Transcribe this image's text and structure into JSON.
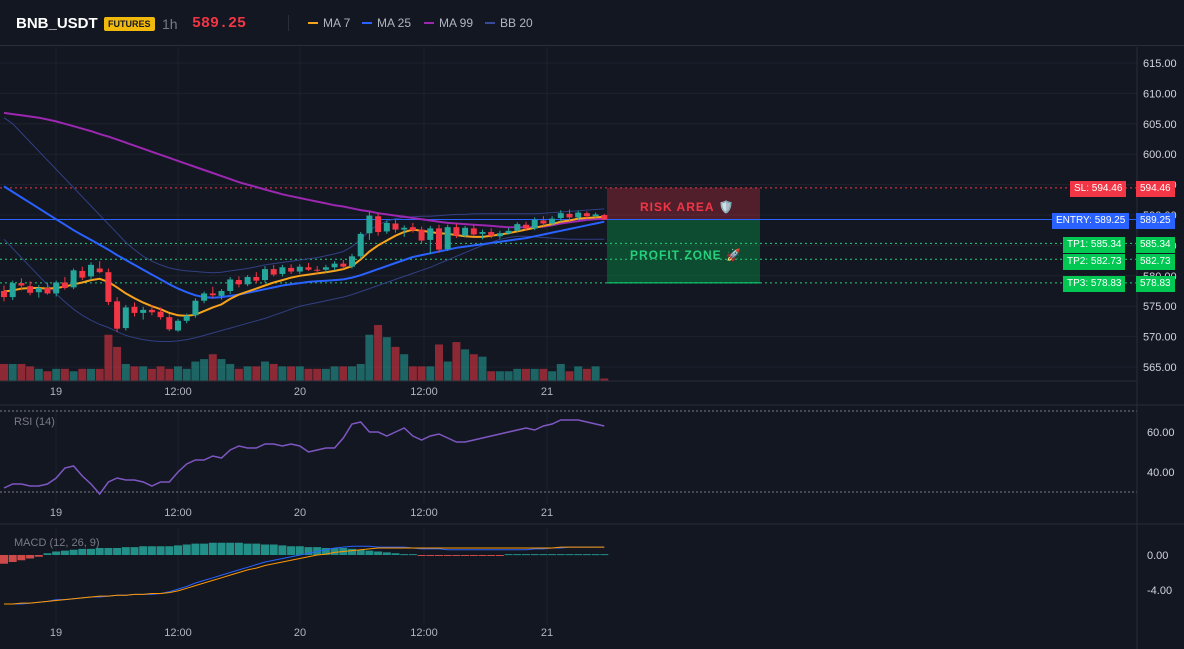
{
  "header": {
    "symbol": "BNB_USDT",
    "badge": "FUTURES",
    "timeframe": "1h",
    "last_price": "589.25",
    "indicators": [
      {
        "label": "MA 7",
        "color": "#f7a21b"
      },
      {
        "label": "MA 25",
        "color": "#2962ff"
      },
      {
        "label": "MA 99",
        "color": "#9c27b0"
      },
      {
        "label": "BB 20",
        "color": "#3a4a9b"
      }
    ]
  },
  "levels": {
    "sl": {
      "tag": "SL: 594.46",
      "axis": "594.46",
      "value": 594.46,
      "color": "#f23645"
    },
    "entry": {
      "tag": "ENTRY: 589.25",
      "axis": "589.25",
      "value": 589.25,
      "color": "#2962ff"
    },
    "tp1": {
      "tag": "TP1: 585.34",
      "axis": "585.34",
      "value": 585.34,
      "color": "#00c853"
    },
    "tp2": {
      "tag": "TP2: 582.73",
      "axis": "582.73",
      "value": 582.73,
      "color": "#00c853"
    },
    "tp3": {
      "tag": "TP3: 578.83",
      "axis": "578.83",
      "value": 578.83,
      "color": "#00c853"
    }
  },
  "zones": {
    "risk_label": "RISK AREA 🛡️",
    "profit_label": "PROFIT ZONE 🚀"
  },
  "time_axis": [
    "19",
    "12:00",
    "20",
    "12:00",
    "21"
  ],
  "rsi_label": "RSI (14)",
  "macd_label": "MACD (12, 26, 9)",
  "chart_data": {
    "type": "candlestick",
    "price_axis": {
      "ticks": [
        615,
        610,
        605,
        600,
        595,
        590,
        585,
        580,
        575,
        570,
        565
      ],
      "tick_labels": [
        "615.00",
        "610.00",
        "605.00",
        "600.00",
        "595.00",
        "590.00",
        "585.00",
        "580.00",
        "575.00",
        "570.00",
        "565.00"
      ],
      "range": [
        563.5,
        617.5
      ]
    },
    "candles": [
      [
        577.5,
        578.4,
        575.8,
        576.5
      ],
      [
        576.5,
        579.2,
        576.0,
        578.8
      ],
      [
        578.8,
        579.6,
        577.6,
        578.4
      ],
      [
        578.3,
        579.1,
        576.8,
        577.2
      ],
      [
        577.3,
        578.5,
        576.4,
        578.0
      ],
      [
        578.0,
        578.9,
        576.9,
        577.1
      ],
      [
        577.1,
        579.2,
        576.6,
        578.9
      ],
      [
        578.9,
        579.8,
        577.7,
        578.0
      ],
      [
        578.1,
        581.2,
        577.8,
        580.9
      ],
      [
        580.8,
        581.5,
        579.3,
        579.7
      ],
      [
        579.9,
        582.2,
        579.3,
        581.8
      ],
      [
        581.2,
        582.4,
        580.4,
        580.6
      ],
      [
        580.6,
        581.2,
        575.2,
        575.7
      ],
      [
        575.8,
        576.5,
        570.8,
        571.3
      ],
      [
        571.4,
        575.2,
        571.0,
        574.8
      ],
      [
        574.9,
        575.6,
        573.3,
        573.9
      ],
      [
        573.9,
        574.9,
        572.8,
        574.4
      ],
      [
        574.4,
        575.2,
        573.5,
        574.0
      ],
      [
        574.1,
        574.8,
        572.8,
        573.2
      ],
      [
        573.2,
        573.7,
        570.9,
        571.2
      ],
      [
        571.0,
        572.9,
        570.8,
        572.6
      ],
      [
        572.6,
        573.8,
        572.2,
        573.4
      ],
      [
        573.5,
        576.3,
        573.1,
        575.9
      ],
      [
        575.9,
        577.4,
        575.5,
        577.1
      ],
      [
        577.1,
        578.2,
        576.4,
        576.8
      ],
      [
        576.7,
        577.8,
        576.1,
        577.5
      ],
      [
        577.5,
        579.8,
        577.0,
        579.4
      ],
      [
        579.3,
        579.9,
        578.1,
        578.6
      ],
      [
        578.6,
        580.1,
        578.3,
        579.8
      ],
      [
        579.8,
        580.6,
        578.8,
        579.2
      ],
      [
        579.3,
        581.6,
        578.9,
        581.1
      ],
      [
        581.1,
        581.8,
        579.9,
        580.2
      ],
      [
        580.3,
        581.8,
        579.9,
        581.4
      ],
      [
        581.3,
        581.9,
        580.3,
        580.7
      ],
      [
        580.7,
        581.9,
        580.3,
        581.5
      ],
      [
        581.4,
        582.1,
        580.8,
        581.0
      ],
      [
        581.0,
        581.6,
        580.4,
        580.9
      ],
      [
        581.0,
        581.8,
        580.5,
        581.4
      ],
      [
        581.4,
        582.4,
        580.9,
        582.0
      ],
      [
        582.0,
        582.6,
        581.1,
        581.5
      ],
      [
        581.5,
        583.6,
        581.2,
        583.2
      ],
      [
        583.2,
        587.2,
        582.8,
        586.9
      ],
      [
        587.0,
        590.5,
        585.9,
        589.9
      ],
      [
        589.8,
        590.3,
        586.6,
        587.2
      ],
      [
        587.3,
        589.1,
        586.9,
        588.7
      ],
      [
        588.6,
        589.2,
        587.1,
        587.6
      ],
      [
        587.6,
        588.3,
        586.4,
        587.9
      ],
      [
        588.0,
        588.7,
        587.1,
        587.5
      ],
      [
        587.6,
        588.1,
        585.4,
        585.8
      ],
      [
        585.9,
        588.2,
        583.6,
        587.8
      ],
      [
        587.8,
        588.4,
        583.8,
        584.3
      ],
      [
        584.4,
        588.4,
        584.1,
        588.0
      ],
      [
        588.0,
        588.6,
        586.2,
        586.6
      ],
      [
        586.6,
        588.2,
        586.3,
        587.9
      ],
      [
        587.8,
        588.3,
        586.5,
        586.8
      ],
      [
        586.9,
        587.6,
        586.0,
        587.2
      ],
      [
        587.2,
        587.8,
        586.2,
        586.6
      ],
      [
        586.5,
        587.4,
        586.1,
        587.0
      ],
      [
        587.0,
        587.9,
        586.8,
        587.4
      ],
      [
        587.4,
        588.8,
        587.2,
        588.5
      ],
      [
        588.4,
        588.9,
        587.4,
        587.8
      ],
      [
        587.8,
        589.6,
        587.5,
        589.2
      ],
      [
        589.1,
        589.8,
        588.2,
        588.6
      ],
      [
        588.6,
        589.8,
        588.3,
        589.4
      ],
      [
        589.5,
        590.8,
        588.9,
        590.3
      ],
      [
        590.2,
        590.9,
        589.1,
        589.6
      ],
      [
        589.6,
        590.7,
        589.3,
        590.4
      ],
      [
        590.3,
        590.6,
        589.4,
        589.8
      ],
      [
        589.8,
        590.4,
        589.3,
        590.1
      ],
      [
        590.0,
        590.2,
        589.2,
        589.25
      ]
    ],
    "volume": [
      7,
      7,
      7,
      6,
      5,
      4,
      5,
      5,
      4,
      5,
      5,
      5,
      19,
      14,
      7,
      6,
      6,
      5,
      6,
      5,
      6,
      5,
      8,
      9,
      11,
      9,
      7,
      5,
      6,
      6,
      8,
      7,
      6,
      6,
      6,
      5,
      5,
      5,
      6,
      6,
      6,
      7,
      19,
      23,
      18,
      14,
      11,
      6,
      6,
      6,
      15,
      8,
      16,
      13,
      11,
      10,
      4,
      4,
      4,
      5,
      5,
      5,
      5,
      4,
      7,
      4,
      6,
      5,
      6,
      1
    ],
    "series": [
      {
        "name": "MA 7",
        "values": [
          577.4,
          577.6,
          577.9,
          578.0,
          578.0,
          577.9,
          578.0,
          578.2,
          578.6,
          578.9,
          579.3,
          579.5,
          579.0,
          578.1,
          577.1,
          576.3,
          575.6,
          575.0,
          574.5,
          573.9,
          573.5,
          573.4,
          573.6,
          574.2,
          574.8,
          575.3,
          576.2,
          576.9,
          577.4,
          577.9,
          578.4,
          578.9,
          579.3,
          579.7,
          580.0,
          580.2,
          580.4,
          580.6,
          580.8,
          581.1,
          581.6,
          582.7,
          584.0,
          585.0,
          585.8,
          586.6,
          587.2,
          587.6,
          587.4,
          587.2,
          587.0,
          586.9,
          586.7,
          586.5,
          586.4,
          586.4,
          586.6,
          586.8,
          587.0,
          587.3,
          587.6,
          587.9,
          588.2,
          588.5,
          588.9,
          589.1,
          589.4,
          589.5,
          589.6,
          589.7
        ]
      },
      {
        "name": "MA 25",
        "values": [
          594.7,
          593.8,
          592.9,
          592.0,
          591.1,
          590.2,
          589.3,
          588.4,
          587.5,
          586.7,
          585.9,
          585.1,
          584.3,
          583.4,
          582.6,
          581.8,
          581.0,
          580.2,
          579.4,
          578.6,
          577.9,
          577.3,
          576.8,
          576.5,
          576.4,
          576.5,
          576.7,
          576.9,
          577.2,
          577.5,
          577.8,
          578.1,
          578.4,
          578.6,
          578.8,
          579.0,
          579.1,
          579.2,
          579.3,
          579.4,
          579.7,
          580.1,
          580.6,
          581.1,
          581.6,
          582.1,
          582.6,
          583.1,
          583.4,
          583.7,
          584.0,
          584.3,
          584.6,
          584.8,
          585.0,
          585.2,
          585.4,
          585.6,
          585.8,
          586.0,
          586.2,
          586.5,
          586.8,
          587.1,
          587.4,
          587.7,
          588.0,
          588.3,
          588.6,
          588.9
        ]
      },
      {
        "name": "MA 99",
        "values": [
          606.8,
          606.6,
          606.4,
          606.2,
          606.0,
          605.7,
          605.4,
          605.0,
          604.6,
          604.2,
          603.8,
          603.3,
          602.9,
          602.4,
          601.9,
          601.4,
          600.9,
          600.4,
          599.9,
          599.4,
          598.9,
          598.4,
          597.9,
          597.4,
          596.9,
          596.4,
          595.9,
          595.4,
          595.0,
          594.6,
          594.2,
          593.8,
          593.4,
          593.1,
          592.8,
          592.5,
          592.2,
          591.9,
          591.6,
          591.4,
          591.1,
          590.8,
          590.6,
          590.3,
          590.1,
          589.9,
          589.7,
          589.5,
          589.3,
          589.1,
          588.9,
          588.7,
          588.6,
          588.5,
          588.4,
          588.3,
          588.2,
          588.1,
          588.0,
          588.0,
          588.0,
          588.0,
          588.1,
          588.3,
          588.6,
          588.8,
          589.0,
          589.2,
          589.3,
          589.4
        ]
      },
      {
        "name": "BB upper",
        "values": [
          606.0,
          605.0,
          603.5,
          602.0,
          600.5,
          599.0,
          597.5,
          596.0,
          594.5,
          593.0,
          591.5,
          590.0,
          588.5,
          587.0,
          585.5,
          584.3,
          583.2,
          582.4,
          581.8,
          581.3,
          581.0,
          580.8,
          580.7,
          580.6,
          580.5,
          580.6,
          580.8,
          581.0,
          581.2,
          581.5,
          581.8,
          582.0,
          582.2,
          582.4,
          582.6,
          582.8,
          583.0,
          583.3,
          583.6,
          584.0,
          584.8,
          586.0,
          587.4,
          588.4,
          589.0,
          589.4,
          589.6,
          589.7,
          589.8,
          589.8,
          589.9,
          590.0,
          590.1,
          590.1,
          590.2,
          590.2,
          590.2,
          590.2,
          590.2,
          590.2,
          590.2,
          590.2,
          590.3,
          590.4,
          590.5,
          590.6,
          590.7,
          590.8,
          590.9,
          591.0
        ]
      },
      {
        "name": "BB lower",
        "values": [
          586.0,
          584.5,
          583.0,
          581.5,
          580.0,
          578.5,
          577.0,
          575.7,
          574.5,
          573.5,
          572.7,
          572.0,
          571.5,
          570.8,
          570.2,
          569.8,
          569.5,
          569.3,
          569.2,
          569.2,
          569.3,
          569.5,
          569.8,
          570.2,
          570.6,
          571.0,
          571.4,
          571.8,
          572.2,
          572.6,
          573.0,
          573.5,
          574.0,
          574.5,
          575.0,
          575.3,
          575.6,
          575.9,
          576.2,
          576.5,
          576.9,
          577.4,
          577.9,
          578.4,
          578.9,
          579.4,
          579.9,
          580.4,
          580.9,
          581.4,
          582.0,
          582.6,
          583.2,
          583.8,
          584.4,
          585.0,
          585.5,
          586.0,
          586.3,
          586.5,
          586.5,
          586.4,
          586.3,
          586.2,
          586.1,
          586.0,
          586.0,
          586.0,
          586.0,
          586.0
        ]
      }
    ],
    "rsi": {
      "ticks": [
        60,
        40
      ],
      "tick_labels": [
        "60.00",
        "40.00"
      ],
      "range": [
        25,
        75
      ],
      "values": [
        32,
        34,
        34,
        33,
        33,
        34,
        37,
        42,
        43,
        38,
        34,
        29,
        35,
        37,
        36,
        36,
        35,
        33,
        35,
        35,
        40,
        44,
        46,
        46,
        48,
        47,
        51,
        53,
        52,
        52,
        54,
        54,
        53,
        54,
        53,
        50,
        51,
        52,
        52,
        57,
        64,
        65,
        60,
        60,
        58,
        60,
        62,
        58,
        56,
        58,
        59,
        57,
        55,
        55,
        56,
        57,
        58,
        59,
        60,
        61,
        62,
        61,
        63,
        64,
        66,
        66,
        66,
        65,
        64,
        63
      ]
    },
    "macd": {
      "ticks": [
        0,
        -4
      ],
      "tick_labels": [
        "0.00",
        "-4.00"
      ],
      "range": [
        -7,
        2.5
      ],
      "macd_line": [
        -5.6,
        -5.6,
        -5.6,
        -5.5,
        -5.4,
        -5.3,
        -5.1,
        -5.1,
        -5.0,
        -4.9,
        -4.8,
        -4.8,
        -4.7,
        -4.6,
        -4.6,
        -4.5,
        -4.5,
        -4.5,
        -4.4,
        -4.2,
        -3.9,
        -3.6,
        -3.2,
        -2.9,
        -2.6,
        -2.3,
        -2.0,
        -1.7,
        -1.4,
        -1.1,
        -0.8,
        -0.6,
        -0.4,
        -0.2,
        0.0,
        0.2,
        0.4,
        0.6,
        0.8,
        0.9,
        1.0,
        1.0,
        1.0,
        0.9,
        0.9,
        0.9,
        0.9,
        0.8,
        0.7,
        0.7,
        0.7,
        0.6,
        0.6,
        0.6,
        0.6,
        0.6,
        0.6,
        0.6,
        0.6,
        0.6,
        0.6,
        0.7,
        0.7,
        0.8,
        0.8,
        0.9,
        0.9,
        0.9,
        0.9,
        0.9
      ],
      "signal_line": [
        -5.6,
        -5.6,
        -5.5,
        -5.5,
        -5.4,
        -5.3,
        -5.2,
        -5.1,
        -5.0,
        -4.9,
        -4.8,
        -4.7,
        -4.7,
        -4.6,
        -4.6,
        -4.5,
        -4.5,
        -4.4,
        -4.4,
        -4.3,
        -4.1,
        -3.8,
        -3.5,
        -3.2,
        -2.9,
        -2.6,
        -2.3,
        -2.0,
        -1.7,
        -1.5,
        -1.2,
        -1.0,
        -0.8,
        -0.6,
        -0.4,
        -0.2,
        0.0,
        0.1,
        0.3,
        0.4,
        0.5,
        0.6,
        0.7,
        0.8,
        0.8,
        0.8,
        0.8,
        0.8,
        0.8,
        0.8,
        0.8,
        0.8,
        0.8,
        0.8,
        0.8,
        0.8,
        0.8,
        0.8,
        0.8,
        0.8,
        0.8,
        0.8,
        0.8,
        0.8,
        0.9,
        0.9,
        0.9,
        0.9,
        0.9,
        0.9
      ],
      "histogram": [
        -1.0,
        -0.8,
        -0.6,
        -0.4,
        -0.2,
        0.2,
        0.4,
        0.5,
        0.6,
        0.7,
        0.7,
        0.8,
        0.8,
        0.8,
        0.9,
        0.9,
        1.0,
        1.0,
        1.0,
        1.0,
        1.1,
        1.2,
        1.3,
        1.3,
        1.4,
        1.4,
        1.4,
        1.4,
        1.3,
        1.3,
        1.2,
        1.2,
        1.1,
        1.0,
        1.0,
        0.9,
        0.9,
        0.8,
        0.8,
        0.8,
        0.7,
        0.6,
        0.5,
        0.4,
        0.3,
        0.2,
        0.1,
        0.1,
        -0.1,
        -0.1,
        -0.1,
        -0.1,
        -0.1,
        -0.1,
        -0.1,
        -0.1,
        -0.1,
        -0.1,
        0.1,
        0.1,
        0.1,
        0.1,
        0.1,
        0.1,
        0.1,
        0.1,
        0.1,
        0.1,
        0.1,
        0.1
      ]
    }
  }
}
